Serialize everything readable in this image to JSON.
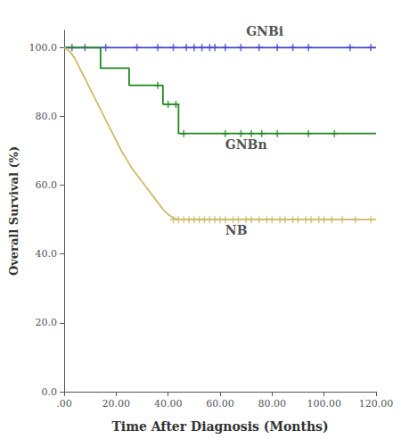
{
  "chart_data": {
    "type": "line",
    "xlabel": "Time After Diagnosis (Months)",
    "ylabel": "Overall Survival (%)",
    "xlim": [
      0,
      120
    ],
    "ylim": [
      0,
      105
    ],
    "xticks": [
      {
        "value": 0,
        "label": ".00"
      },
      {
        "value": 20,
        "label": "20.00"
      },
      {
        "value": 40,
        "label": "40.00"
      },
      {
        "value": 60,
        "label": "60.00"
      },
      {
        "value": 80,
        "label": "80.00"
      },
      {
        "value": 100,
        "label": "100.00"
      },
      {
        "value": 120,
        "label": "120.00"
      }
    ],
    "yticks": [
      {
        "value": 0,
        "label": "0.0"
      },
      {
        "value": 20,
        "label": "20.0"
      },
      {
        "value": 40,
        "label": "40.0"
      },
      {
        "value": 60,
        "label": "60.0"
      },
      {
        "value": 80,
        "label": "80.0"
      },
      {
        "value": 100,
        "label": "100.0"
      }
    ],
    "grid": false,
    "series": [
      {
        "type": "line",
        "color": "#4444cc",
        "x": [
          0,
          120
        ],
        "values": [
          100,
          100
        ]
      },
      {
        "type": "scatter",
        "marker": "plus",
        "color": "#4444cc",
        "x": [
          3,
          8,
          16,
          28,
          36,
          42,
          47,
          50,
          53,
          56,
          58,
          62,
          68,
          75,
          82,
          88,
          94,
          110,
          118
        ],
        "values": [
          100,
          100,
          100,
          100,
          100,
          100,
          100,
          100,
          100,
          100,
          100,
          100,
          100,
          100,
          100,
          100,
          100,
          100,
          100
        ]
      },
      {
        "type": "line",
        "color": "#228822",
        "x": [
          0,
          14,
          14,
          25,
          25,
          38,
          38,
          44,
          44,
          47,
          47,
          120
        ],
        "values": [
          100,
          100,
          94,
          94,
          89,
          89,
          83.5,
          83.5,
          75,
          75,
          75,
          75
        ]
      },
      {
        "type": "scatter",
        "marker": "plus",
        "color": "#228822",
        "x": [
          36,
          40,
          43,
          46,
          62,
          68,
          72,
          76,
          82,
          94,
          104
        ],
        "values": [
          89,
          83.5,
          83.5,
          75,
          75,
          75,
          75,
          75,
          75,
          75,
          75
        ]
      },
      {
        "type": "line",
        "color": "#ccbb66",
        "x": [
          0,
          2,
          4,
          6,
          8,
          10,
          12,
          14,
          16,
          18,
          20,
          22,
          24,
          26,
          28,
          30,
          32,
          34,
          36,
          38,
          40,
          42,
          44,
          46,
          48,
          50,
          52,
          54,
          56,
          60,
          65,
          70,
          75,
          80,
          85,
          90,
          95,
          100,
          105,
          110,
          115,
          120
        ],
        "values": [
          100,
          99,
          97,
          94,
          91,
          88,
          85,
          82,
          79,
          76,
          73,
          70,
          67.5,
          65,
          63,
          61,
          59,
          57,
          55,
          53,
          51.5,
          50.5,
          50,
          50,
          50,
          50,
          50,
          50,
          50,
          50,
          50,
          50,
          50,
          50,
          50,
          50,
          50,
          50,
          50,
          50,
          50,
          50
        ]
      },
      {
        "type": "scatter",
        "marker": "plus",
        "color": "#ccbb66",
        "x": [
          42,
          44,
          46,
          48,
          50,
          52,
          54,
          56,
          58,
          60,
          62,
          65,
          67,
          70,
          72,
          75,
          78,
          80,
          83,
          85,
          88,
          90,
          93,
          95,
          98,
          100,
          103,
          107,
          112,
          118
        ],
        "values": [
          50,
          50,
          50,
          50,
          50,
          50,
          50,
          50,
          50,
          50,
          50,
          50,
          50,
          50,
          50,
          50,
          50,
          50,
          50,
          50,
          50,
          50,
          50,
          50,
          50,
          50,
          50,
          50,
          50,
          50
        ]
      }
    ],
    "annotations": [
      {
        "text": "GNBi",
        "x": 70,
        "y": 103
      },
      {
        "text": "GNBn",
        "x": 62,
        "y": 70
      },
      {
        "text": "NB",
        "x": 62,
        "y": 45
      }
    ]
  }
}
